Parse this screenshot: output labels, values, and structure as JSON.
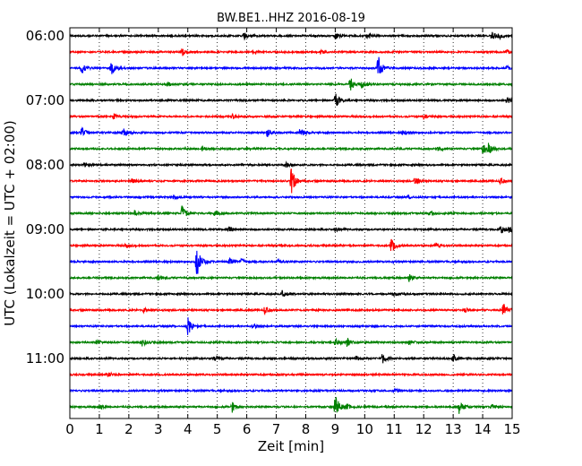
{
  "chart_data": {
    "type": "line",
    "title": "BW.BE1..HHZ 2016-08-19",
    "xlabel": "Zeit  [min]",
    "ylabel": "UTC (Lokalzeit = UTC + 02:00)",
    "xlim": [
      0,
      15
    ],
    "x_ticks": [
      0,
      1,
      2,
      3,
      4,
      5,
      6,
      7,
      8,
      9,
      10,
      11,
      12,
      13,
      14,
      15
    ],
    "x_tick_labels": [
      "0",
      "1",
      "2",
      "3",
      "4",
      "5",
      "6",
      "7",
      "8",
      "9",
      "10",
      "11",
      "12",
      "13",
      "14",
      "15"
    ],
    "y_tick_labels": [
      "06:00",
      "07:00",
      "08:00",
      "09:00",
      "10:00",
      "11:00"
    ],
    "y_tick_rows": [
      0,
      4,
      8,
      12,
      16,
      20
    ],
    "trace_interval_min": 15,
    "grid": "vertical-dotted",
    "colors": [
      "#000000",
      "#ff0000",
      "#0000ff",
      "#008000"
    ],
    "series": [
      {
        "start": "06:00",
        "events": [
          [
            5.9,
            0.4
          ],
          [
            9.0,
            0.4
          ],
          [
            10.1,
            0.4
          ],
          [
            14.3,
            0.5
          ],
          [
            14.55,
            0.3
          ]
        ]
      },
      {
        "start": "06:15",
        "events": [
          [
            3.8,
            0.6
          ],
          [
            6.2,
            0.2
          ],
          [
            8.5,
            0.2
          ],
          [
            14.8,
            0.3
          ]
        ]
      },
      {
        "start": "06:30",
        "events": [
          [
            0.4,
            0.6
          ],
          [
            1.4,
            0.9
          ],
          [
            10.45,
            1.8
          ],
          [
            14.8,
            0.3
          ]
        ]
      },
      {
        "start": "06:45",
        "events": [
          [
            3.3,
            0.3
          ],
          [
            9.5,
            0.9
          ],
          [
            9.9,
            0.4
          ]
        ]
      },
      {
        "start": "07:00",
        "events": [
          [
            9.0,
            1.0
          ],
          [
            14.8,
            0.5
          ]
        ]
      },
      {
        "start": "07:15",
        "events": [
          [
            1.5,
            0.3
          ],
          [
            5.5,
            0.3
          ],
          [
            12.0,
            0.3
          ]
        ]
      },
      {
        "start": "07:30",
        "events": [
          [
            0.4,
            0.6
          ],
          [
            1.8,
            0.6
          ],
          [
            6.7,
            0.6
          ],
          [
            7.8,
            0.6
          ],
          [
            11.3,
            0.3
          ]
        ]
      },
      {
        "start": "07:45",
        "events": [
          [
            4.5,
            0.3
          ],
          [
            12.5,
            0.3
          ],
          [
            14.0,
            0.8
          ],
          [
            14.2,
            0.6
          ]
        ]
      },
      {
        "start": "08:00",
        "events": [
          [
            0.5,
            0.3
          ],
          [
            7.3,
            0.3
          ]
        ]
      },
      {
        "start": "08:15",
        "events": [
          [
            2.1,
            0.3
          ],
          [
            7.5,
            1.8
          ],
          [
            11.7,
            0.4
          ],
          [
            14.6,
            0.3
          ]
        ]
      },
      {
        "start": "08:30",
        "events": [
          [
            3.5,
            0.2
          ],
          [
            11.5,
            0.2
          ]
        ]
      },
      {
        "start": "08:45",
        "events": [
          [
            2.2,
            0.4
          ],
          [
            3.8,
            0.9
          ],
          [
            4.9,
            0.3
          ],
          [
            12.2,
            0.3
          ]
        ]
      },
      {
        "start": "09:00",
        "events": [
          [
            5.4,
            0.4
          ],
          [
            9.0,
            0.3
          ],
          [
            14.6,
            0.6
          ],
          [
            14.9,
            0.4
          ]
        ]
      },
      {
        "start": "09:15",
        "events": [
          [
            1.9,
            0.3
          ],
          [
            10.9,
            0.8
          ],
          [
            12.4,
            0.3
          ]
        ]
      },
      {
        "start": "09:30",
        "events": [
          [
            4.3,
            2.0
          ],
          [
            5.4,
            0.6
          ],
          [
            5.8,
            0.4
          ],
          [
            7.0,
            0.3
          ]
        ]
      },
      {
        "start": "09:45",
        "events": [
          [
            3.0,
            0.3
          ],
          [
            11.5,
            0.5
          ]
        ]
      },
      {
        "start": "10:00",
        "events": [
          [
            7.2,
            0.4
          ],
          [
            11.0,
            0.2
          ]
        ]
      },
      {
        "start": "10:15",
        "events": [
          [
            2.5,
            0.3
          ],
          [
            6.6,
            0.4
          ],
          [
            13.4,
            0.3
          ],
          [
            14.7,
            0.9
          ]
        ]
      },
      {
        "start": "10:30",
        "events": [
          [
            4.0,
            1.1
          ],
          [
            6.2,
            0.3
          ]
        ]
      },
      {
        "start": "10:45",
        "events": [
          [
            0.9,
            0.3
          ],
          [
            2.45,
            0.5
          ],
          [
            9.0,
            0.5
          ],
          [
            9.4,
            0.6
          ],
          [
            11.5,
            0.3
          ]
        ]
      },
      {
        "start": "11:00",
        "events": [
          [
            4.9,
            0.4
          ],
          [
            9.7,
            0.3
          ],
          [
            10.6,
            0.6
          ],
          [
            13.0,
            0.5
          ]
        ]
      },
      {
        "start": "11:15",
        "events": [
          [
            1.3,
            0.3
          ]
        ]
      },
      {
        "start": "11:30",
        "events": [
          [
            11.0,
            0.2
          ]
        ]
      },
      {
        "start": "11:45",
        "events": [
          [
            1.0,
            0.3
          ],
          [
            5.5,
            0.7
          ],
          [
            9.0,
            1.5
          ],
          [
            9.4,
            0.3
          ],
          [
            13.2,
            0.8
          ],
          [
            14.3,
            0.3
          ]
        ]
      }
    ]
  }
}
